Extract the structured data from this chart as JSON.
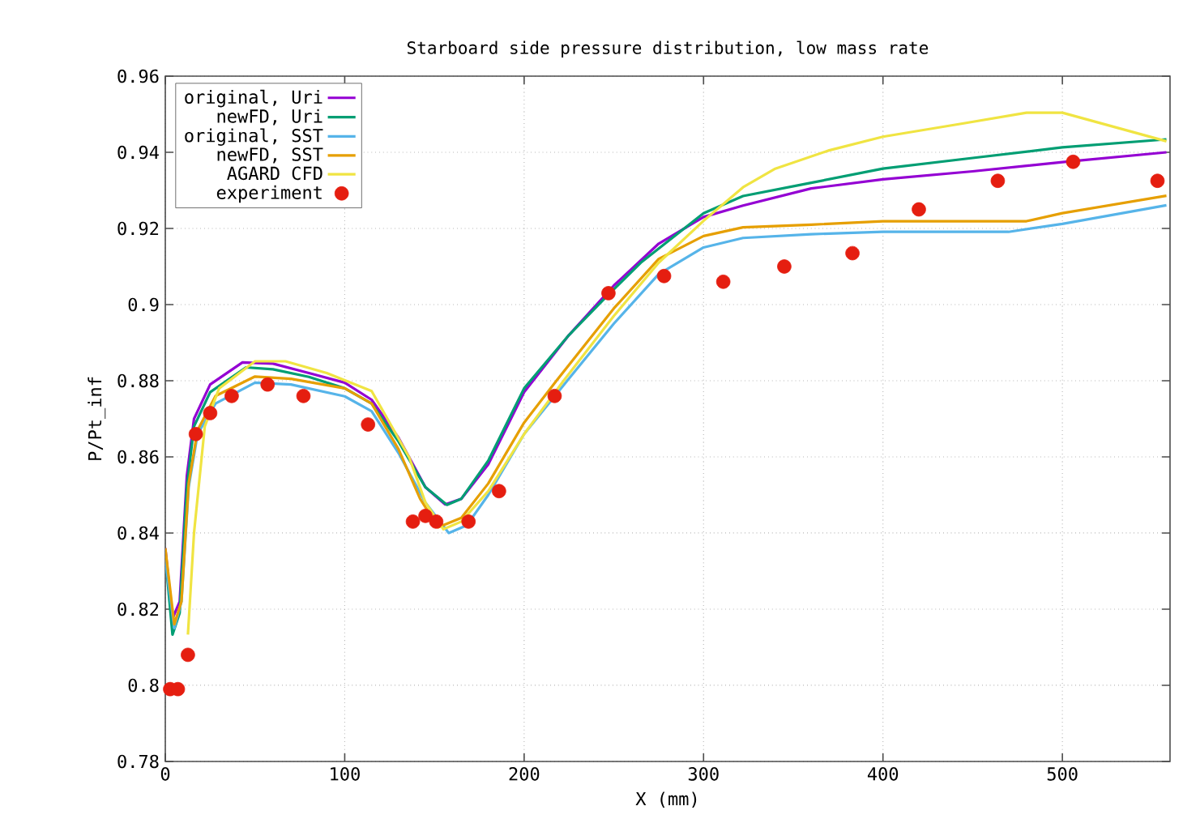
{
  "chart_data": {
    "type": "line",
    "title": "Starboard side pressure distribution, low mass rate",
    "xlabel": "X (mm)",
    "ylabel": "P/Pt_inf",
    "xlim": [
      0,
      560
    ],
    "xticks": [
      0,
      100,
      200,
      300,
      400,
      500
    ],
    "ylim": [
      0.78,
      0.96
    ],
    "yticks": [
      0.78,
      0.8,
      0.82,
      0.84,
      0.86,
      0.88,
      0.9,
      0.92,
      0.94,
      0.96
    ],
    "grid": true,
    "legend": "top left",
    "line_style": "solid",
    "marker": "none",
    "series": [
      {
        "name": "original, Uri",
        "color": "#9400d3",
        "x": [
          0,
          4,
          8,
          12,
          16,
          25,
          43,
          60,
          80,
          100,
          115,
          130,
          145,
          156,
          165,
          180,
          200,
          225,
          250,
          275,
          300,
          322,
          360,
          400,
          450,
          500,
          558
        ],
        "values": [
          0.836,
          0.8175,
          0.822,
          0.855,
          0.87,
          0.879,
          0.8848,
          0.8845,
          0.882,
          0.8795,
          0.875,
          0.865,
          0.852,
          0.8475,
          0.849,
          0.858,
          0.877,
          0.892,
          0.905,
          0.916,
          0.923,
          0.926,
          0.9305,
          0.9329,
          0.935,
          0.9374,
          0.94
        ]
      },
      {
        "name": "newFD, Uri",
        "color": "#009e73",
        "x": [
          0,
          4,
          8,
          12,
          16,
          25,
          45,
          60,
          80,
          100,
          115,
          130,
          145,
          157,
          165,
          180,
          200,
          225,
          244,
          265,
          300,
          322,
          360,
          400,
          450,
          500,
          558
        ],
        "values": [
          0.834,
          0.8133,
          0.819,
          0.852,
          0.868,
          0.877,
          0.8835,
          0.883,
          0.881,
          0.878,
          0.874,
          0.864,
          0.852,
          0.8474,
          0.849,
          0.859,
          0.878,
          0.892,
          0.9012,
          0.911,
          0.924,
          0.9285,
          0.932,
          0.9357,
          0.9385,
          0.9413,
          0.9434
        ]
      },
      {
        "name": "original, SST",
        "color": "#56b4e9",
        "x": [
          0,
          5,
          9,
          13,
          18,
          28,
          50,
          70,
          100,
          115,
          130,
          145,
          158,
          168,
          180,
          200,
          224,
          250,
          275,
          300,
          322,
          360,
          400,
          470,
          500,
          558
        ],
        "values": [
          0.833,
          0.815,
          0.822,
          0.852,
          0.866,
          0.874,
          0.8795,
          0.879,
          0.8759,
          0.872,
          0.861,
          0.848,
          0.84,
          0.842,
          0.85,
          0.866,
          0.88,
          0.895,
          0.908,
          0.915,
          0.9175,
          0.9185,
          0.9191,
          0.9191,
          0.9212,
          0.9261
        ]
      },
      {
        "name": "newFD, SST",
        "color": "#e69f00",
        "x": [
          0,
          5,
          9,
          13,
          18,
          28,
          50,
          70,
          100,
          115,
          130,
          142,
          152,
          165,
          180,
          200,
          218,
          250,
          275,
          300,
          322,
          360,
          400,
          480,
          500,
          558
        ],
        "values": [
          0.836,
          0.816,
          0.822,
          0.853,
          0.867,
          0.876,
          0.8811,
          0.8805,
          0.878,
          0.874,
          0.862,
          0.849,
          0.8415,
          0.844,
          0.853,
          0.869,
          0.88,
          0.899,
          0.912,
          0.918,
          0.9203,
          0.921,
          0.9219,
          0.9219,
          0.924,
          0.9286
        ]
      },
      {
        "name": "AGARD CFD",
        "color": "#f0e442",
        "x": [
          12.6,
          16,
          22,
          30,
          50,
          67,
          90,
          115,
          125,
          136,
          145,
          155,
          165,
          180,
          200,
          222,
          250,
          275,
          300,
          322,
          340,
          370,
          400,
          445,
          480,
          500,
          558
        ],
        "values": [
          0.8133,
          0.84,
          0.868,
          0.878,
          0.8851,
          0.8851,
          0.882,
          0.8773,
          0.869,
          0.8598,
          0.848,
          0.841,
          0.843,
          0.851,
          0.866,
          0.88,
          0.897,
          0.911,
          0.922,
          0.9308,
          0.9357,
          0.9405,
          0.9441,
          0.9476,
          0.9504,
          0.9504,
          0.9429
        ]
      },
      {
        "name": "experiment",
        "type": "scatter",
        "marker": "circle",
        "color": "#e51e10",
        "x": [
          2.7,
          7,
          12.6,
          17,
          25,
          37,
          57,
          77,
          113,
          138,
          145,
          151,
          169,
          186,
          217,
          247,
          278,
          311,
          345,
          383,
          420,
          464,
          506,
          553
        ],
        "values": [
          0.799,
          0.799,
          0.808,
          0.866,
          0.8715,
          0.876,
          0.879,
          0.876,
          0.8685,
          0.843,
          0.8445,
          0.843,
          0.843,
          0.851,
          0.876,
          0.903,
          0.9075,
          0.906,
          0.91,
          0.9135,
          0.925,
          0.9325,
          0.9375,
          0.9325
        ]
      }
    ]
  }
}
